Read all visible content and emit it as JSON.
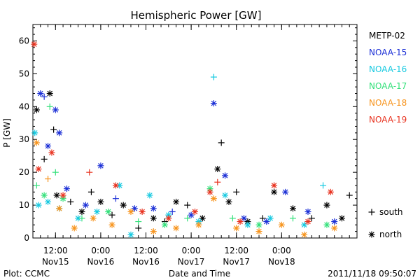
{
  "chart_data": {
    "type": "scatter",
    "title": "Hemispheric Power [GW]",
    "ylabel": "P [GW]",
    "xlabel": "Date and Time",
    "ylim": [
      0,
      65
    ],
    "xlim": [
      "2011-11-15 06:00",
      "2011-11-18 20:00"
    ],
    "grid": false,
    "y_ticks": [
      0,
      10,
      20,
      30,
      40,
      50,
      60
    ],
    "x_ticks": [
      {
        "t": "2011-11-15 12:00",
        "time": "12:00",
        "date": "Nov15"
      },
      {
        "t": "2011-11-16 00:00",
        "time": "0:00",
        "date": "Nov16"
      },
      {
        "t": "2011-11-16 12:00",
        "time": "12:00",
        "date": "Nov16"
      },
      {
        "t": "2011-11-17 00:00",
        "time": "0:00",
        "date": "Nov17"
      },
      {
        "t": "2011-11-17 12:00",
        "time": "12:00",
        "date": "Nov17"
      },
      {
        "t": "2011-11-18 00:00",
        "time": "0:00",
        "date": "Nov18"
      }
    ],
    "legend": {
      "placement": "right",
      "markers": [
        {
          "symbol": "+",
          "label": "south"
        },
        {
          "symbol": "*",
          "label": "north"
        }
      ]
    },
    "series": [
      {
        "name": "METP-02",
        "color": "#000000",
        "points": [
          {
            "t": "2011-11-15 07:00",
            "y": 39,
            "m": "*"
          },
          {
            "t": "2011-11-15 09:00",
            "y": 24,
            "m": "+"
          },
          {
            "t": "2011-11-15 10:30",
            "y": 44,
            "m": "*"
          },
          {
            "t": "2011-11-15 11:30",
            "y": 33,
            "m": "+"
          },
          {
            "t": "2011-11-15 12:20",
            "y": 13,
            "m": "*"
          },
          {
            "t": "2011-11-15 16:00",
            "y": 11,
            "m": "+"
          },
          {
            "t": "2011-11-15 19:00",
            "y": 8,
            "m": "*"
          },
          {
            "t": "2011-11-15 21:30",
            "y": 14,
            "m": "+"
          },
          {
            "t": "2011-11-16 00:00",
            "y": 11,
            "m": "*"
          },
          {
            "t": "2011-11-16 03:00",
            "y": 7,
            "m": "+"
          },
          {
            "t": "2011-11-16 06:00",
            "y": 10,
            "m": "*"
          },
          {
            "t": "2011-11-16 10:00",
            "y": 3,
            "m": "+"
          },
          {
            "t": "2011-11-16 14:00",
            "y": 6,
            "m": "*"
          },
          {
            "t": "2011-11-16 17:00",
            "y": 5,
            "m": "+"
          },
          {
            "t": "2011-11-16 20:00",
            "y": 11,
            "m": "*"
          },
          {
            "t": "2011-11-16 23:00",
            "y": 10,
            "m": "+"
          },
          {
            "t": "2011-11-17 03:00",
            "y": 6,
            "m": "*"
          },
          {
            "t": "2011-11-17 07:00",
            "y": 21,
            "m": "*"
          },
          {
            "t": "2011-11-17 08:00",
            "y": 29,
            "m": "+"
          },
          {
            "t": "2011-11-17 10:00",
            "y": 11,
            "m": "*"
          },
          {
            "t": "2011-11-17 12:00",
            "y": 14,
            "m": "+"
          },
          {
            "t": "2011-11-17 15:00",
            "y": 5,
            "m": "*"
          },
          {
            "t": "2011-11-17 19:00",
            "y": 6,
            "m": "+"
          },
          {
            "t": "2011-11-17 22:00",
            "y": 14,
            "m": "*"
          },
          {
            "t": "2011-11-18 03:00",
            "y": 9,
            "m": "*"
          },
          {
            "t": "2011-11-18 08:00",
            "y": 6,
            "m": "+"
          },
          {
            "t": "2011-11-18 12:00",
            "y": 10,
            "m": "*"
          },
          {
            "t": "2011-11-18 16:00",
            "y": 6,
            "m": "*"
          },
          {
            "t": "2011-11-18 18:00",
            "y": 13,
            "m": "+"
          }
        ]
      },
      {
        "name": "NOAA-15",
        "color": "#1b2fd6",
        "points": [
          {
            "t": "2011-11-15 08:00",
            "y": 44,
            "m": "*"
          },
          {
            "t": "2011-11-15 09:00",
            "y": 43,
            "m": "+"
          },
          {
            "t": "2011-11-15 10:00",
            "y": 28,
            "m": "*"
          },
          {
            "t": "2011-11-15 12:00",
            "y": 39,
            "m": "*"
          },
          {
            "t": "2011-11-15 13:00",
            "y": 32,
            "m": "*"
          },
          {
            "t": "2011-11-15 15:00",
            "y": 15,
            "m": "*"
          },
          {
            "t": "2011-11-15 20:00",
            "y": 10,
            "m": "*"
          },
          {
            "t": "2011-11-16 00:00",
            "y": 22,
            "m": "*"
          },
          {
            "t": "2011-11-16 04:00",
            "y": 12,
            "m": "+"
          },
          {
            "t": "2011-11-16 09:00",
            "y": 9,
            "m": "*"
          },
          {
            "t": "2011-11-16 14:00",
            "y": 9,
            "m": "*"
          },
          {
            "t": "2011-11-16 19:00",
            "y": 8,
            "m": "+"
          },
          {
            "t": "2011-11-17 00:00",
            "y": 7,
            "m": "*"
          },
          {
            "t": "2011-11-17 06:00",
            "y": 41,
            "m": "*"
          },
          {
            "t": "2011-11-17 09:00",
            "y": 19,
            "m": "*"
          },
          {
            "t": "2011-11-17 14:00",
            "y": 6,
            "m": "*"
          },
          {
            "t": "2011-11-17 20:00",
            "y": 5,
            "m": "*"
          },
          {
            "t": "2011-11-18 01:00",
            "y": 14,
            "m": "*"
          },
          {
            "t": "2011-11-18 07:00",
            "y": 8,
            "m": "*"
          },
          {
            "t": "2011-11-18 14:00",
            "y": 5,
            "m": "*"
          }
        ]
      },
      {
        "name": "NOAA-16",
        "color": "#16c9e0",
        "points": [
          {
            "t": "2011-11-15 06:30",
            "y": 32,
            "m": "*"
          },
          {
            "t": "2011-11-15 07:30",
            "y": 10,
            "m": "*"
          },
          {
            "t": "2011-11-15 10:00",
            "y": 11,
            "m": "*"
          },
          {
            "t": "2011-11-15 13:00",
            "y": 9,
            "m": "*"
          },
          {
            "t": "2011-11-15 18:00",
            "y": 6,
            "m": "*"
          },
          {
            "t": "2011-11-15 23:00",
            "y": 8,
            "m": "*"
          },
          {
            "t": "2011-11-16 05:00",
            "y": 16,
            "m": "*"
          },
          {
            "t": "2011-11-16 08:00",
            "y": 1,
            "m": "*"
          },
          {
            "t": "2011-11-16 13:00",
            "y": 13,
            "m": "*"
          },
          {
            "t": "2011-11-16 18:00",
            "y": 7,
            "m": "*"
          },
          {
            "t": "2011-11-17 02:00",
            "y": 5,
            "m": "*"
          },
          {
            "t": "2011-11-17 06:00",
            "y": 49,
            "m": "+"
          },
          {
            "t": "2011-11-17 09:00",
            "y": 13,
            "m": "*"
          },
          {
            "t": "2011-11-17 15:00",
            "y": 4,
            "m": "*"
          },
          {
            "t": "2011-11-17 21:00",
            "y": 6,
            "m": "*"
          },
          {
            "t": "2011-11-18 06:00",
            "y": 4,
            "m": "*"
          },
          {
            "t": "2011-11-18 11:00",
            "y": 16,
            "m": "+"
          }
        ]
      },
      {
        "name": "NOAA-17",
        "color": "#33e07a",
        "points": [
          {
            "t": "2011-11-15 07:00",
            "y": 16,
            "m": "+"
          },
          {
            "t": "2011-11-15 09:00",
            "y": 13,
            "m": "*"
          },
          {
            "t": "2011-11-15 10:30",
            "y": 40,
            "m": "+"
          },
          {
            "t": "2011-11-15 12:00",
            "y": 20,
            "m": "+"
          },
          {
            "t": "2011-11-15 14:00",
            "y": 12,
            "m": "*"
          },
          {
            "t": "2011-11-15 19:00",
            "y": 6,
            "m": "+"
          },
          {
            "t": "2011-11-16 02:00",
            "y": 8,
            "m": "*"
          },
          {
            "t": "2011-11-16 10:00",
            "y": 5,
            "m": "+"
          },
          {
            "t": "2011-11-16 17:00",
            "y": 4,
            "m": "*"
          },
          {
            "t": "2011-11-16 23:00",
            "y": 6,
            "m": "+"
          },
          {
            "t": "2011-11-17 05:00",
            "y": 15,
            "m": "*"
          },
          {
            "t": "2011-11-17 11:00",
            "y": 6,
            "m": "+"
          },
          {
            "t": "2011-11-17 18:00",
            "y": 4,
            "m": "*"
          },
          {
            "t": "2011-11-18 03:00",
            "y": 6,
            "m": "+"
          },
          {
            "t": "2011-11-18 12:00",
            "y": 4,
            "m": "*"
          }
        ]
      },
      {
        "name": "NOAA-18",
        "color": "#f7941d",
        "points": [
          {
            "t": "2011-11-15 07:00",
            "y": 29,
            "m": "*"
          },
          {
            "t": "2011-11-15 10:00",
            "y": 18,
            "m": "+"
          },
          {
            "t": "2011-11-15 13:00",
            "y": 9,
            "m": "*"
          },
          {
            "t": "2011-11-15 17:00",
            "y": 3,
            "m": "*"
          },
          {
            "t": "2011-11-15 22:00",
            "y": 6,
            "m": "*"
          },
          {
            "t": "2011-11-16 03:00",
            "y": 4,
            "m": "*"
          },
          {
            "t": "2011-11-16 08:00",
            "y": 8,
            "m": "*"
          },
          {
            "t": "2011-11-16 14:00",
            "y": 2,
            "m": "*"
          },
          {
            "t": "2011-11-16 20:00",
            "y": 3,
            "m": "*"
          },
          {
            "t": "2011-11-17 02:00",
            "y": 4,
            "m": "*"
          },
          {
            "t": "2011-11-17 06:00",
            "y": 12,
            "m": "*"
          },
          {
            "t": "2011-11-17 12:00",
            "y": 3,
            "m": "*"
          },
          {
            "t": "2011-11-17 18:00",
            "y": 2,
            "m": "*"
          },
          {
            "t": "2011-11-18 00:00",
            "y": 4,
            "m": "*"
          },
          {
            "t": "2011-11-18 06:00",
            "y": 1,
            "m": "*"
          },
          {
            "t": "2011-11-18 14:00",
            "y": 3,
            "m": "*"
          }
        ]
      },
      {
        "name": "NOAA-19",
        "color": "#e8321f",
        "points": [
          {
            "t": "2011-11-15 06:20",
            "y": 59,
            "m": "*"
          },
          {
            "t": "2011-11-15 07:30",
            "y": 21,
            "m": "*"
          },
          {
            "t": "2011-11-15 11:00",
            "y": 26,
            "m": "*"
          },
          {
            "t": "2011-11-15 14:00",
            "y": 13,
            "m": "*"
          },
          {
            "t": "2011-11-15 21:00",
            "y": 20,
            "m": "+"
          },
          {
            "t": "2011-11-16 04:00",
            "y": 16,
            "m": "*"
          },
          {
            "t": "2011-11-16 11:00",
            "y": 8,
            "m": "*"
          },
          {
            "t": "2011-11-16 18:00",
            "y": 6,
            "m": "*"
          },
          {
            "t": "2011-11-17 01:00",
            "y": 8,
            "m": "*"
          },
          {
            "t": "2011-11-17 05:00",
            "y": 14,
            "m": "*"
          },
          {
            "t": "2011-11-17 07:00",
            "y": 17,
            "m": "+"
          },
          {
            "t": "2011-11-17 13:00",
            "y": 5,
            "m": "*"
          },
          {
            "t": "2011-11-17 22:00",
            "y": 16,
            "m": "*"
          },
          {
            "t": "2011-11-18 07:00",
            "y": 5,
            "m": "*"
          },
          {
            "t": "2011-11-18 13:00",
            "y": 14,
            "m": "*"
          }
        ]
      }
    ]
  },
  "footer": {
    "plot_credit": "Plot: CCMC",
    "timestamp": "2011/11/18 09:50:07"
  }
}
